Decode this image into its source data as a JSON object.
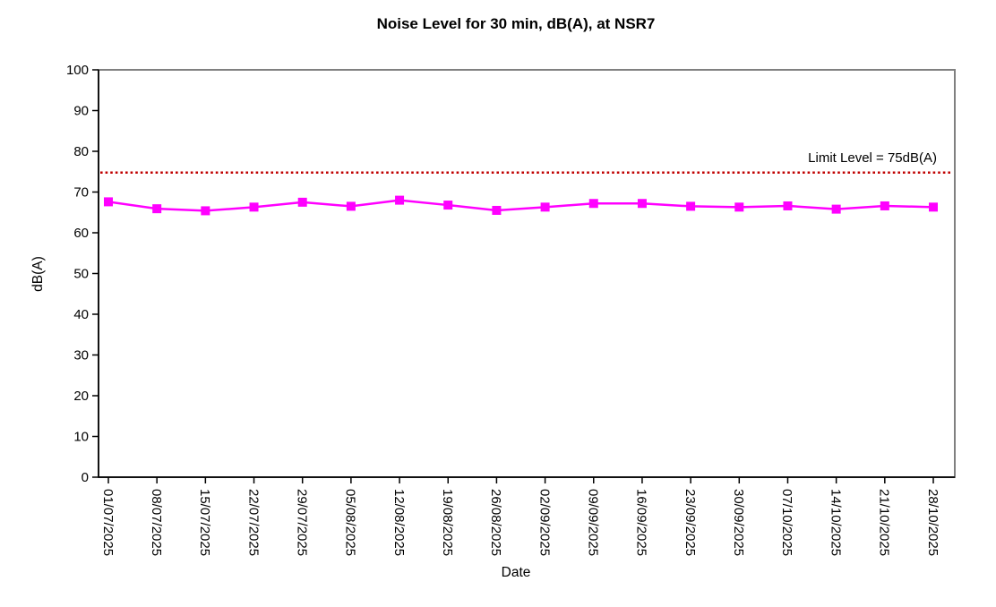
{
  "chart_data": {
    "type": "line",
    "title": "Noise Level for 30 min, dB(A), at NSR7",
    "xlabel": "Date",
    "ylabel": "dB(A)",
    "ylim": [
      0,
      100
    ],
    "y_tick_step": 10,
    "y_tick_labels": [
      "0",
      "10",
      "20",
      "30",
      "40",
      "50",
      "60",
      "70",
      "80",
      "90",
      "100"
    ],
    "categories": [
      "01/07/2025",
      "08/07/2025",
      "15/07/2025",
      "22/07/2025",
      "29/07/2025",
      "05/08/2025",
      "12/08/2025",
      "19/08/2025",
      "26/08/2025",
      "02/09/2025",
      "09/09/2025",
      "16/09/2025",
      "23/09/2025",
      "30/09/2025",
      "07/10/2025",
      "14/10/2025",
      "21/10/2025",
      "28/10/2025"
    ],
    "series": [
      {
        "marker": "square",
        "color": "#FF00FF",
        "values": [
          67.6,
          65.9,
          65.4,
          66.3,
          67.5,
          66.5,
          68.0,
          66.8,
          65.5,
          66.3,
          67.2,
          67.2,
          66.5,
          66.3,
          66.6,
          65.8,
          66.6,
          66.3
        ]
      }
    ],
    "limit_line": {
      "value": 75,
      "label": "Limit Level = 75dB(A)",
      "line_color": "#C00000",
      "label_color": "#FF0000",
      "style": "dotted"
    },
    "legend": "none",
    "grid": "off",
    "colors": {
      "plot_border": "#808080",
      "axis": "#000000",
      "background": "#FFFFFF"
    }
  }
}
